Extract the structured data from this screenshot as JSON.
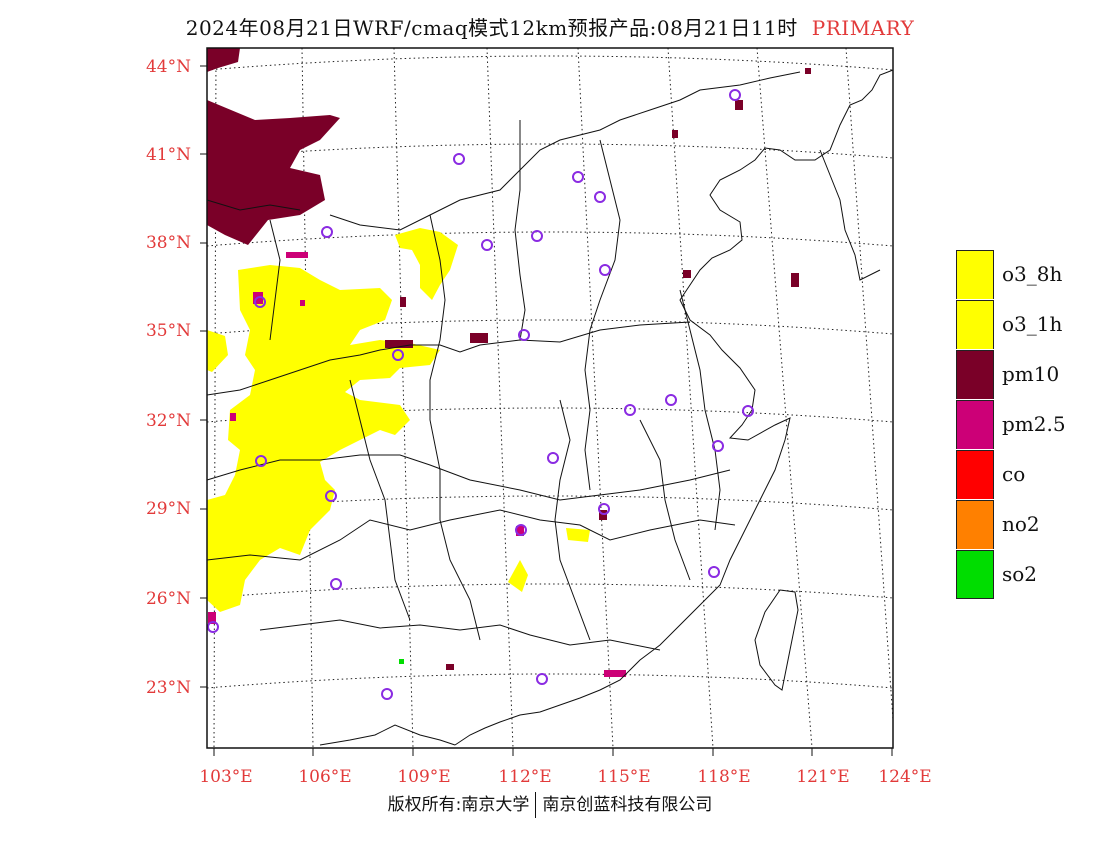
{
  "title": {
    "main": "2024年08月21日WRF/cmaq模式12km预报产品:08月21日11时",
    "tag": "PRIMARY"
  },
  "axes": {
    "lat_labels": [
      "44°N",
      "41°N",
      "38°N",
      "35°N",
      "32°N",
      "29°N",
      "26°N",
      "23°N"
    ],
    "lon_labels": [
      "103°E",
      "106°E",
      "109°E",
      "112°E",
      "115°E",
      "118°E",
      "121°E",
      "124°E"
    ],
    "label_color": "#e23a3a"
  },
  "legend": [
    {
      "label": "o3_8h",
      "color": "#ffff00"
    },
    {
      "label": "o3_1h",
      "color": "#ffff00"
    },
    {
      "label": "pm10",
      "color": "#7a0028"
    },
    {
      "label": "pm2.5",
      "color": "#cc0077"
    },
    {
      "label": "co",
      "color": "#ff0000"
    },
    {
      "label": "no2",
      "color": "#ff8000"
    },
    {
      "label": "so2",
      "color": "#00dd00"
    }
  ],
  "footer": {
    "left": "版权所有:南京大学",
    "right": "南京创蓝科技有限公司"
  }
}
